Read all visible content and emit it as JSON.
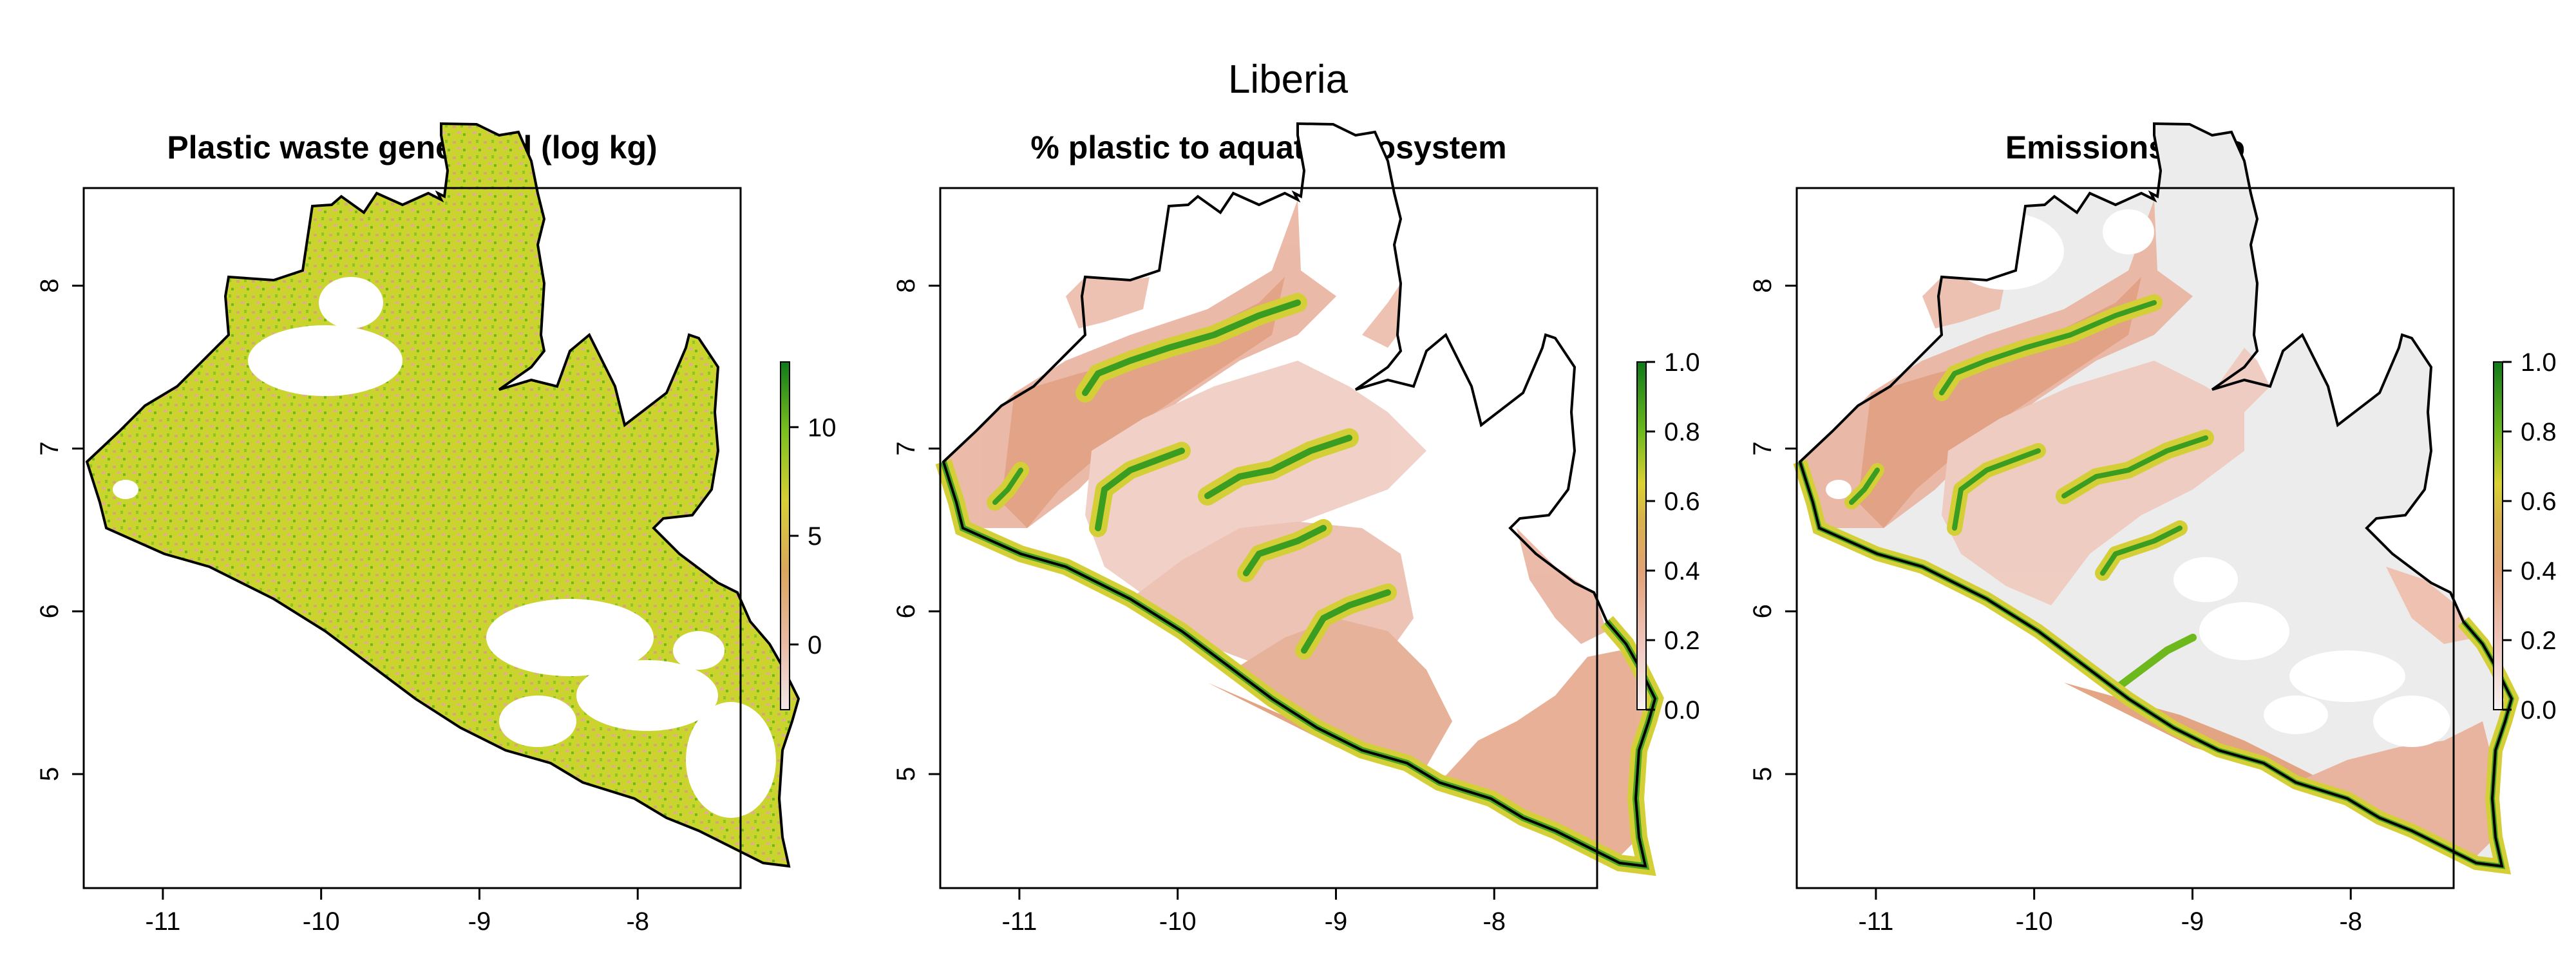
{
  "figure": {
    "title": "Liberia"
  },
  "colors": {
    "scale": [
      "#f2f2f2",
      "#f0c9c2",
      "#e2a57f",
      "#d6a757",
      "#dbc23a",
      "#c8d62c",
      "#82c41f",
      "#2c9a24",
      "#0f7a1a"
    ],
    "map_outline": "#000000",
    "no_data_grey": "#ececec"
  },
  "panels": [
    {
      "title": "Plastic waste generated (log kg)",
      "legend_ticks": [
        "0",
        "5",
        "10"
      ]
    },
    {
      "title": "% plastic to aquatic ecosystem",
      "legend_ticks": [
        "0.0",
        "0.2",
        "0.4",
        "0.6",
        "0.8",
        "1.0"
      ]
    },
    {
      "title": "Emissions ratio",
      "legend_ticks": [
        "0.0",
        "0.2",
        "0.4",
        "0.6",
        "0.8",
        "1.0"
      ]
    }
  ],
  "axes": {
    "x_ticks": [
      "-11",
      "-10",
      "-9",
      "-8"
    ],
    "y_ticks": [
      "5",
      "6",
      "7",
      "8"
    ],
    "xlim": [
      -11.5,
      -7.35
    ],
    "ylim": [
      4.3,
      8.6
    ]
  },
  "chart_data": [
    {
      "type": "heatmap",
      "title": "Plastic waste generated (log kg)",
      "xlim": [
        -11.5,
        -7.35
      ],
      "ylim": [
        4.3,
        8.6
      ],
      "colorbar_range": [
        -3,
        13
      ],
      "colorbar_ticks": [
        0,
        5,
        10
      ]
    },
    {
      "type": "heatmap",
      "title": "% plastic to aquatic ecosystem",
      "xlim": [
        -11.5,
        -7.35
      ],
      "ylim": [
        4.3,
        8.6
      ],
      "colorbar_range": [
        0,
        1
      ],
      "colorbar_ticks": [
        0.0,
        0.2,
        0.4,
        0.6,
        0.8,
        1.0
      ]
    },
    {
      "type": "heatmap",
      "title": "Emissions ratio",
      "xlim": [
        -11.5,
        -7.35
      ],
      "ylim": [
        4.3,
        8.6
      ],
      "colorbar_range": [
        0,
        1
      ],
      "colorbar_ticks": [
        0.0,
        0.2,
        0.4,
        0.6,
        0.8,
        1.0
      ]
    }
  ]
}
